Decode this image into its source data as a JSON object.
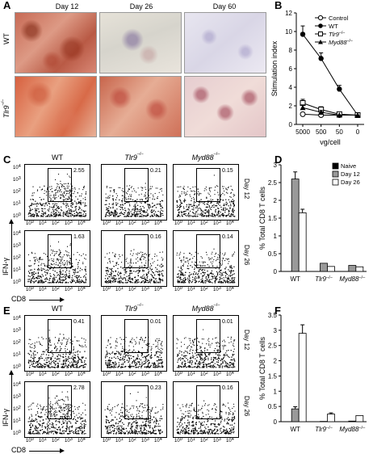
{
  "panel_a": {
    "label": "A",
    "columns": [
      "Day 12",
      "Day 26",
      "Day 60"
    ],
    "rows": [
      {
        "name": "WT",
        "sup": ""
      },
      {
        "name": "Tlr9",
        "sup": "–/–"
      }
    ]
  },
  "panel_b": {
    "label": "B",
    "ylabel": "Stimulation index",
    "xlabel": "vg/cell",
    "legend": [
      {
        "name": "Control",
        "sup": ""
      },
      {
        "name": "WT",
        "sup": ""
      },
      {
        "name": "Tlr9",
        "sup": "–/–"
      },
      {
        "name": "Myd88",
        "sup": "–/–"
      }
    ]
  },
  "panel_c": {
    "label": "C",
    "columns": [
      {
        "name": "WT",
        "sup": ""
      },
      {
        "name": "Tlr9",
        "sup": "–/–"
      },
      {
        "name": "Myd88",
        "sup": "–/–"
      }
    ],
    "days": [
      "Day 12",
      "Day 26"
    ],
    "values": [
      [
        "2.55",
        "0.21",
        "0.15"
      ],
      [
        "1.63",
        "0.16",
        "0.14"
      ]
    ],
    "y_axis": "IFN-γ",
    "x_axis": "CD8"
  },
  "panel_d": {
    "label": "D",
    "ylabel": "% Total CD8 T cells",
    "legend": [
      "Naive",
      "Day 12",
      "Day 26"
    ]
  },
  "panel_e": {
    "label": "E",
    "columns": [
      {
        "name": "WT",
        "sup": ""
      },
      {
        "name": "Tlr9",
        "sup": "–/–"
      },
      {
        "name": "Myd88",
        "sup": "–/–"
      }
    ],
    "days": [
      "Day 12",
      "Day 26"
    ],
    "values": [
      [
        "0.41",
        "0.01",
        "0.01"
      ],
      [
        "2.78",
        "0.23",
        "0.16"
      ]
    ],
    "y_axis": "IFN-γ",
    "x_axis": "CD8"
  },
  "panel_f": {
    "label": "F",
    "ylabel": "% Total CD8 T cells"
  },
  "facs_ticks": [
    "10",
    "10",
    "10",
    "10",
    "10"
  ],
  "facs_tick_exp": [
    "0",
    "1",
    "2",
    "3",
    "4"
  ],
  "chart_data": [
    {
      "type": "line",
      "id": "B",
      "categories": [
        "5000",
        "500",
        "50",
        "0"
      ],
      "ylim": [
        0,
        12
      ],
      "yticks": [
        0,
        2,
        4,
        6,
        8,
        10,
        12
      ],
      "ylabel": "Stimulation index",
      "xlabel": "vg/cell",
      "series": [
        {
          "name": "Control",
          "values": [
            1.1,
            1.0,
            1.0,
            1.0
          ],
          "err": [
            0.2,
            0.1,
            0.1,
            0.1
          ],
          "marker": "open-circle"
        },
        {
          "name": "WT",
          "values": [
            9.7,
            7.1,
            3.8,
            1.0
          ],
          "err": [
            0.9,
            0.6,
            0.4,
            0.1
          ],
          "marker": "filled-circle"
        },
        {
          "name": "Tlr9-/-",
          "values": [
            2.3,
            1.6,
            1.1,
            1.0
          ],
          "err": [
            0.4,
            0.3,
            0.2,
            0.1
          ],
          "marker": "open-square"
        },
        {
          "name": "Myd88-/-",
          "values": [
            1.8,
            1.3,
            1.0,
            1.0
          ],
          "err": [
            0.3,
            0.2,
            0.1,
            0.1
          ],
          "marker": "filled-triangle"
        }
      ]
    },
    {
      "type": "bar",
      "id": "D",
      "categories": [
        {
          "name": "WT",
          "sup": ""
        },
        {
          "name": "Tlr9",
          "sup": "–/–"
        },
        {
          "name": "Myd88",
          "sup": "–/–"
        }
      ],
      "ylim": [
        0,
        3
      ],
      "yticks": [
        0,
        0.5,
        1,
        1.5,
        2,
        2.5,
        3
      ],
      "ylabel": "% Total CD8 T cells",
      "series": [
        {
          "name": "Naive",
          "color": "#000000",
          "values": [
            0,
            0,
            0
          ],
          "err": [
            0,
            0,
            0
          ]
        },
        {
          "name": "Day 12",
          "color": "#999999",
          "values": [
            2.6,
            0.23,
            0.17
          ],
          "err": [
            0.2,
            0.02,
            0.02
          ]
        },
        {
          "name": "Day 26",
          "color": "#ffffff",
          "values": [
            1.65,
            0.14,
            0.13
          ],
          "err": [
            0.1,
            0.02,
            0.02
          ]
        }
      ]
    },
    {
      "type": "bar",
      "id": "F",
      "categories": [
        {
          "name": "WT",
          "sup": ""
        },
        {
          "name": "Tlr9",
          "sup": "–/–"
        },
        {
          "name": "Myd88",
          "sup": "–/–"
        }
      ],
      "ylim": [
        0,
        3.5
      ],
      "yticks": [
        0,
        0.5,
        1,
        1.5,
        2,
        2.5,
        3,
        3.5
      ],
      "ylabel": "% Total CD8 T cells",
      "series": [
        {
          "name": "Naive",
          "color": "#000000",
          "values": [
            0,
            0,
            0
          ],
          "err": [
            0,
            0,
            0
          ]
        },
        {
          "name": "Day 12",
          "color": "#999999",
          "values": [
            0.42,
            0.01,
            0.02
          ],
          "err": [
            0.07,
            0.01,
            0.01
          ]
        },
        {
          "name": "Day 26",
          "color": "#ffffff",
          "values": [
            2.9,
            0.25,
            0.2
          ],
          "err": [
            0.28,
            0.04,
            0.02
          ]
        }
      ]
    }
  ]
}
